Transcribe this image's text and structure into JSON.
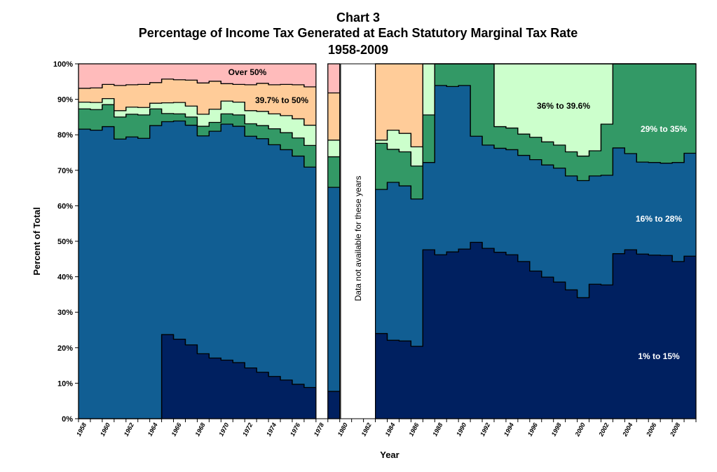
{
  "chart_data": {
    "type": "area",
    "stacked": true,
    "step": true,
    "title": [
      "Chart 3",
      "Percentage of Income Tax Generated at Each Statutory Marginal Tax Rate",
      "1958-2009"
    ],
    "xlabel": "Year",
    "ylabel": "Percent of Total",
    "ylim": [
      0,
      100
    ],
    "yticks": [
      "0%",
      "10%",
      "20%",
      "30%",
      "40%",
      "50%",
      "60%",
      "70%",
      "80%",
      "90%",
      "100%"
    ],
    "xticks": [
      "1958",
      "1960",
      "1962",
      "1964",
      "1966",
      "1968",
      "1970",
      "1972",
      "1974",
      "1976",
      "1978",
      "1980",
      "1982",
      "1984",
      "1986",
      "1988",
      "1990",
      "1992",
      "1994",
      "1996",
      "1998",
      "2000",
      "2002",
      "2004",
      "2006",
      "2008"
    ],
    "grid": false,
    "x_start": 1958,
    "x_end": 2009,
    "missing_years": [
      1978,
      1980,
      1981,
      1982
    ],
    "missing_note": "Data not available  for these years",
    "series": [
      {
        "name": "1% to 15%",
        "color": "#002060",
        "label_color": "#ffffff",
        "values": [
          0,
          0,
          0,
          0,
          0,
          0,
          0,
          23.7,
          22.4,
          20.8,
          18.3,
          17.1,
          16.5,
          15.8,
          14.3,
          13.1,
          11.9,
          10.9,
          9.7,
          8.8,
          null,
          7.7,
          null,
          null,
          null,
          24.0,
          22.1,
          21.9,
          20.4,
          47.6,
          46.2,
          47.0,
          47.8,
          49.7,
          48.0,
          46.9,
          46.2,
          44.3,
          41.6,
          39.9,
          38.5,
          36.3,
          34.1,
          37.9,
          37.7,
          46.5,
          47.6,
          46.4,
          46.1,
          46.0,
          44.3,
          45.8
        ]
      },
      {
        "name": "16% to 28%",
        "color": "#115E93",
        "label_color": "#ffffff",
        "values": [
          81.6,
          81.3,
          82.3,
          78.8,
          79.4,
          79.0,
          82.6,
          60.0,
          61.5,
          61.9,
          61.4,
          63.9,
          66.5,
          66.6,
          65.3,
          65.8,
          65.3,
          64.9,
          64.3,
          62.1,
          null,
          57.5,
          null,
          null,
          null,
          40.6,
          44.5,
          43.7,
          41.5,
          24.6,
          47.7,
          46.6,
          46.1,
          29.9,
          29.1,
          29.3,
          29.6,
          29.9,
          31.4,
          31.6,
          32.1,
          32.1,
          33.0,
          30.5,
          30.9,
          29.8,
          27.1,
          25.9,
          26.1,
          26.0,
          27.9,
          29.0
        ]
      },
      {
        "name": "29% to 35%",
        "color": "#339966",
        "label_color": "#ffffff",
        "values": [
          5.7,
          5.8,
          6.2,
          6.2,
          6.4,
          6.6,
          4.7,
          2.3,
          2.0,
          2.3,
          2.7,
          2.5,
          2.9,
          3.2,
          3.5,
          3.7,
          4.5,
          4.8,
          5.1,
          6.1,
          null,
          8.6,
          null,
          null,
          null,
          13.0,
          9.3,
          9.6,
          9.3,
          13.4,
          6.1,
          6.4,
          6.1,
          20.4,
          22.9,
          6.1,
          6.1,
          6.0,
          6.3,
          6.5,
          6.5,
          6.8,
          6.9,
          7.1,
          14.4,
          23.7,
          25.3,
          27.7,
          27.8,
          28.0,
          27.8,
          25.2
        ]
      },
      {
        "name": "36% to 39.6%",
        "color": "#CCFFCC",
        "label_color": "#000000",
        "values": [
          1.9,
          2.0,
          1.7,
          1.8,
          2.0,
          2.1,
          1.6,
          3.0,
          3.2,
          3.1,
          3.4,
          3.7,
          3.6,
          3.6,
          3.7,
          4.0,
          4.2,
          4.8,
          5.4,
          5.7,
          null,
          4.7,
          null,
          null,
          null,
          0.9,
          5.4,
          5.2,
          5.4,
          14.4,
          0,
          0,
          0,
          0,
          0,
          17.7,
          18.1,
          19.8,
          20.7,
          22.0,
          22.9,
          24.8,
          26.0,
          24.5,
          17.0,
          0,
          0,
          0,
          0,
          0,
          0,
          0
        ]
      },
      {
        "name": "39.7% to 50%",
        "color": "#FFCC99",
        "label_color": "#000000",
        "values": [
          3.9,
          4.1,
          4.0,
          7.1,
          6.3,
          6.5,
          5.8,
          6.7,
          6.4,
          7.3,
          8.8,
          7.9,
          4.9,
          5.0,
          7.3,
          7.9,
          8.2,
          8.8,
          9.6,
          10.8,
          null,
          13.3,
          null,
          null,
          null,
          21.5,
          18.7,
          19.6,
          23.4,
          0,
          0,
          0,
          0,
          0,
          0,
          0,
          0,
          0,
          0,
          0,
          0,
          0,
          0,
          0,
          0,
          0,
          0,
          0,
          0,
          0,
          0,
          0
        ]
      },
      {
        "name": "Over 50%",
        "color": "#FFBBBB",
        "label_color": "#000000",
        "values": [
          6.9,
          6.8,
          5.8,
          6.1,
          5.9,
          5.8,
          5.3,
          4.3,
          4.5,
          4.6,
          5.4,
          4.9,
          5.6,
          5.8,
          5.9,
          5.5,
          5.9,
          5.8,
          5.9,
          6.5,
          null,
          8.2,
          null,
          null,
          null,
          0,
          0,
          0,
          0,
          0,
          0,
          0,
          0,
          0,
          0,
          0,
          0,
          0,
          0,
          0,
          0,
          0,
          0,
          0,
          0,
          0,
          0,
          0,
          0,
          0,
          0,
          0
        ]
      }
    ]
  }
}
